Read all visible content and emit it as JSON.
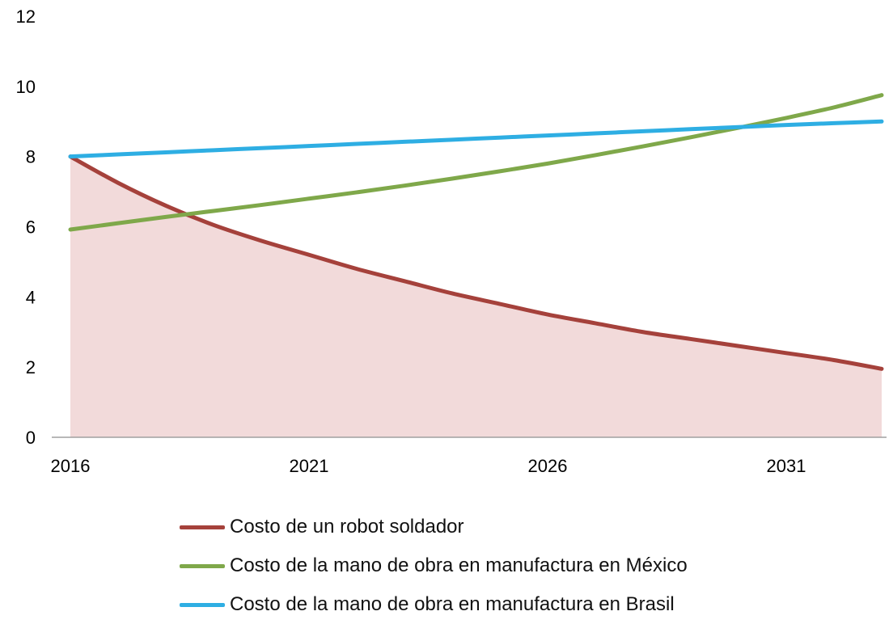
{
  "chart_data": {
    "type": "line",
    "x": [
      2016,
      2017,
      2018,
      2019,
      2020,
      2021,
      2022,
      2023,
      2024,
      2025,
      2026,
      2027,
      2028,
      2029,
      2030,
      2031,
      2032,
      2033
    ],
    "series": [
      {
        "name": "Costo de un robot soldador",
        "color": "#a5413b",
        "fill": "#f2dada",
        "values": [
          8.0,
          7.25,
          6.6,
          6.05,
          5.6,
          5.2,
          4.8,
          4.45,
          4.1,
          3.8,
          3.5,
          3.25,
          3.0,
          2.8,
          2.6,
          2.4,
          2.2,
          1.95
        ]
      },
      {
        "name": "Costo de la mano de obra en manufactura en México",
        "color": "#7fa84a",
        "values": [
          5.92,
          6.1,
          6.28,
          6.45,
          6.62,
          6.8,
          6.98,
          7.17,
          7.37,
          7.58,
          7.8,
          8.04,
          8.29,
          8.55,
          8.82,
          9.1,
          9.4,
          9.75
        ]
      },
      {
        "name": "Costo de la mano de obra en manufactura en Brasil",
        "color": "#2eaee3",
        "values": [
          8.0,
          8.06,
          8.12,
          8.18,
          8.24,
          8.3,
          8.36,
          8.42,
          8.48,
          8.54,
          8.6,
          8.66,
          8.72,
          8.78,
          8.84,
          8.9,
          8.95,
          9.0
        ]
      }
    ],
    "x_ticks": [
      "2016",
      "2021",
      "2026",
      "2031"
    ],
    "y_ticks": [
      "0",
      "2",
      "4",
      "6",
      "8",
      "10",
      "12"
    ],
    "ylim": [
      0,
      12
    ],
    "xlim": [
      2016,
      2033
    ],
    "grid": false,
    "legend_position": "bottom"
  }
}
